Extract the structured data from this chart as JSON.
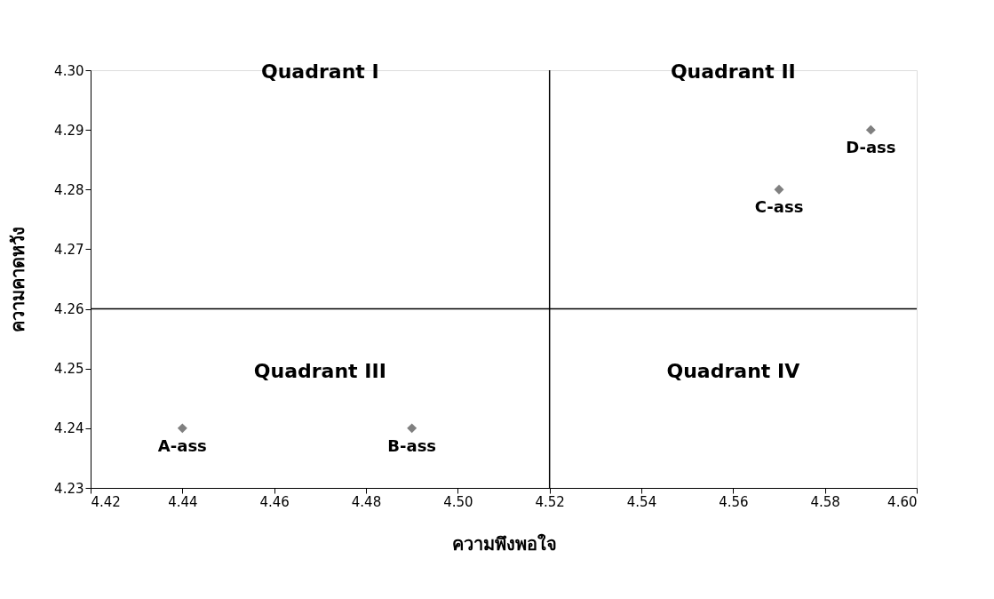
{
  "chart_data": {
    "type": "scatter",
    "xlabel": "ความพึงพอใจ",
    "ylabel": "ความคาดหวัง",
    "x": [
      4.44,
      4.49,
      4.57,
      4.59
    ],
    "series": [
      {
        "color": "#808080",
        "values": [
          4.24,
          4.24,
          4.28,
          4.29
        ]
      }
    ],
    "marker": "diamond",
    "grid": false,
    "xlim": [
      4.42,
      4.6
    ],
    "xticks": [
      {
        "value": 4.42,
        "label": "4.42"
      },
      {
        "value": 4.44,
        "label": "4.44"
      },
      {
        "value": 4.46,
        "label": "4.46"
      },
      {
        "value": 4.48,
        "label": "4.48"
      },
      {
        "value": 4.5,
        "label": "4.50"
      },
      {
        "value": 4.52,
        "label": "4.52"
      },
      {
        "value": 4.54,
        "label": "4.54"
      },
      {
        "value": 4.56,
        "label": "4.56"
      },
      {
        "value": 4.58,
        "label": "4.58"
      },
      {
        "value": 4.6,
        "label": "4.60"
      }
    ],
    "ylim": [
      4.23,
      4.3
    ],
    "yticks": [
      {
        "value": 4.23,
        "label": "4.23"
      },
      {
        "value": 4.24,
        "label": "4.24"
      },
      {
        "value": 4.25,
        "label": "4.25"
      },
      {
        "value": 4.26,
        "label": "4.26"
      },
      {
        "value": 4.27,
        "label": "4.27"
      },
      {
        "value": 4.28,
        "label": "4.28"
      },
      {
        "value": 4.29,
        "label": "4.29"
      },
      {
        "value": 4.3,
        "label": "4.30"
      }
    ],
    "ref_lines": [
      {
        "axis": "x",
        "value": 4.52,
        "color": "#000000"
      },
      {
        "axis": "y",
        "value": 4.26,
        "color": "#000000"
      }
    ],
    "annotations": [
      "Quadrant I",
      "Quadrant II",
      "Quadrant III",
      "Quadrant IV",
      {
        "text": "A-ass",
        "x": 4.44,
        "y": 4.24
      },
      {
        "text": "B-ass",
        "x": 4.49,
        "y": 4.24
      },
      {
        "text": "C-ass",
        "x": 4.57,
        "y": 4.28
      },
      {
        "text": "D-ass",
        "x": 4.59,
        "y": 4.29
      }
    ]
  }
}
